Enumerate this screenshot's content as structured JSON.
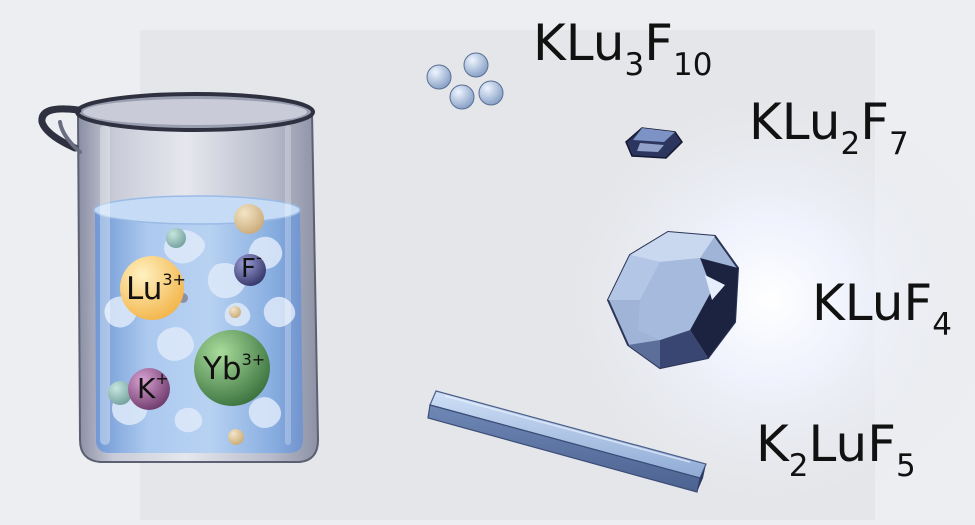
{
  "ions": {
    "lu": {
      "symbol": "Lu",
      "charge": "3+"
    },
    "f": {
      "symbol": "F",
      "charge": "-"
    },
    "k": {
      "symbol": "K",
      "charge": "+"
    },
    "yb": {
      "symbol": "Yb",
      "charge": "3+"
    }
  },
  "products": {
    "klu3f10": {
      "p1": "KLu",
      "s1": "3",
      "p2": "F",
      "s2": "10"
    },
    "klu2f7": {
      "p1": "KLu",
      "s1": "2",
      "p2": "F",
      "s2": "7"
    },
    "kluf4": {
      "p1": "KLuF",
      "s1": "4"
    },
    "k2luf5": {
      "p1": "K",
      "s1": "2",
      "p2": "LuF",
      "s2": "5"
    }
  },
  "colors": {
    "background": "#eceef1",
    "panel": "#e4e6e9",
    "beaker_steel": "#b4b8c8",
    "solution": "#8eb5e6",
    "lu_ion": "#f8c35a",
    "f_ion": "#4a4d8a",
    "k_ion": "#8a4f86",
    "yb_ion": "#4f8a4f",
    "crystal": "#9fb4d6",
    "crystal_dark": "#1c2340",
    "glow": "#ffffff"
  }
}
